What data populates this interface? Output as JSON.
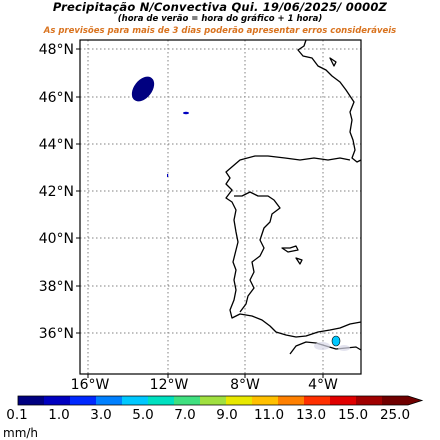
{
  "header": {
    "title": "Precipitação N/Convectiva  Qui. 19/06/2025/ 0000Z",
    "subtitle": "(hora de verão = hora do gráfico + 1 hora)",
    "warning": "As previsões para mais de 3 dias poderão apresentar erros consideráveis"
  },
  "map": {
    "lat_labels": [
      "48°N",
      "46°N",
      "44°N",
      "42°N",
      "40°N",
      "38°N",
      "36°N"
    ],
    "lon_labels": [
      "16°W",
      "12°W",
      "8°W",
      "4°W"
    ],
    "gridlines": true,
    "colors": {
      "precip_low": "#000080",
      "coast": "#000000",
      "grid": "#808080"
    }
  },
  "colorbar": {
    "labels": [
      "0.1",
      "1.0",
      "3.0",
      "5.0",
      "7.0",
      "9.0",
      "11.0",
      "13.0",
      "15.0",
      "25.0"
    ],
    "unit": "mm/h",
    "colors": [
      "#000080",
      "#0000c0",
      "#0028ff",
      "#0080ff",
      "#00c8ff",
      "#00e0c0",
      "#40e080",
      "#a0e040",
      "#e8e800",
      "#ffc000",
      "#ff8000",
      "#ff3000",
      "#e00000",
      "#a00000",
      "#700000"
    ]
  }
}
